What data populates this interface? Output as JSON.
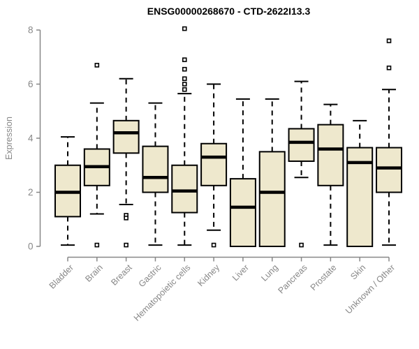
{
  "title": "ENSG00000268670 - CTD-2622I13.3",
  "colors": {
    "background": "#ffffff",
    "axis": "#878787",
    "box_fill": "#EEE8CD",
    "box_stroke": "#000000",
    "median": "#000000",
    "title_color": "#000000"
  },
  "chart_data": {
    "type": "boxplot",
    "title": "ENSG00000268670 - CTD-2622I13.3",
    "xlabel": "",
    "ylabel": "Expression",
    "ylim": [
      0,
      8
    ],
    "yticks": [
      0,
      2,
      4,
      6,
      8
    ],
    "grid": false,
    "legend": "none",
    "categories": [
      "Bladder",
      "Brain",
      "Breast",
      "Gastric",
      "Hematopoietic cells",
      "Kidney",
      "Liver",
      "Lung",
      "Pancreas",
      "Prostate",
      "Skin",
      "Unknown / Other"
    ],
    "series": [
      {
        "label": "Bladder",
        "whisker_low": 0.05,
        "q1": 1.1,
        "median": 2.0,
        "q3": 3.0,
        "whisker_high": 4.05,
        "outliers": []
      },
      {
        "label": "Brain",
        "whisker_low": 1.2,
        "q1": 2.25,
        "median": 2.95,
        "q3": 3.6,
        "whisker_high": 5.3,
        "outliers": [
          6.7,
          0.05
        ]
      },
      {
        "label": "Breast",
        "whisker_low": 1.55,
        "q1": 3.45,
        "median": 4.2,
        "q3": 4.65,
        "whisker_high": 6.2,
        "outliers": [
          1.15,
          1.05,
          0.05
        ]
      },
      {
        "label": "Gastric",
        "whisker_low": 0.05,
        "q1": 2.0,
        "median": 2.55,
        "q3": 3.7,
        "whisker_high": 5.3,
        "outliers": []
      },
      {
        "label": "Hematopoietic cells",
        "whisker_low": 0.05,
        "q1": 1.25,
        "median": 2.05,
        "q3": 3.0,
        "whisker_high": 5.65,
        "outliers": [
          8.05,
          6.9,
          6.55,
          6.2,
          6.0,
          5.8
        ]
      },
      {
        "label": "Kidney",
        "whisker_low": 0.6,
        "q1": 2.25,
        "median": 3.3,
        "q3": 3.8,
        "whisker_high": 6.0,
        "outliers": [
          0.05
        ]
      },
      {
        "label": "Liver",
        "whisker_low": 0.0,
        "q1": 0.0,
        "median": 1.45,
        "q3": 2.5,
        "whisker_high": 5.45,
        "outliers": []
      },
      {
        "label": "Lung",
        "whisker_low": 0.0,
        "q1": 0.0,
        "median": 2.0,
        "q3": 3.5,
        "whisker_high": 5.45,
        "outliers": []
      },
      {
        "label": "Pancreas",
        "whisker_low": 2.55,
        "q1": 3.15,
        "median": 3.85,
        "q3": 4.35,
        "whisker_high": 6.1,
        "outliers": [
          0.05
        ]
      },
      {
        "label": "Prostate",
        "whisker_low": 0.05,
        "q1": 2.25,
        "median": 3.6,
        "q3": 4.5,
        "whisker_high": 5.25,
        "outliers": []
      },
      {
        "label": "Skin",
        "whisker_low": 0.0,
        "q1": 0.0,
        "median": 3.1,
        "q3": 3.65,
        "whisker_high": 4.65,
        "outliers": []
      },
      {
        "label": "Unknown / Other",
        "whisker_low": 0.05,
        "q1": 2.0,
        "median": 2.9,
        "q3": 3.65,
        "whisker_high": 5.8,
        "outliers": [
          7.6,
          6.6
        ]
      }
    ]
  }
}
